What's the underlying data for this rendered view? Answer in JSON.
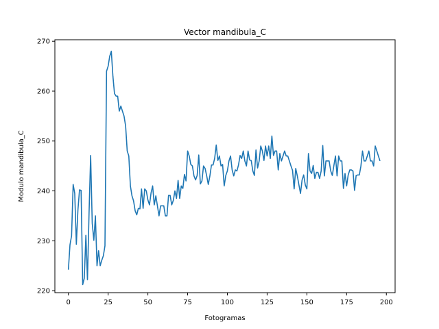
{
  "chart_data": {
    "type": "line",
    "title": "Vector mandibula_C",
    "xlabel": "Fotogramas",
    "ylabel": "Modulo mandibula_C",
    "xlim": [
      -8.5,
      205.5
    ],
    "ylim": [
      219.6,
      270.3
    ],
    "xticks": [
      0,
      25,
      50,
      75,
      100,
      125,
      150,
      175,
      200
    ],
    "yticks": [
      220,
      230,
      240,
      250,
      260,
      270
    ],
    "grid": false,
    "line_color": "#1f77b4",
    "series": [
      {
        "x": [
          0,
          1,
          2,
          3,
          4,
          5,
          6,
          7,
          8,
          9,
          10,
          11,
          12,
          13,
          14,
          15,
          16,
          17,
          18,
          19,
          20,
          21,
          22,
          23,
          24,
          25,
          26,
          27,
          28,
          29,
          30,
          31,
          32,
          33,
          34,
          35,
          36,
          37,
          38,
          39,
          40,
          41,
          42,
          43,
          44,
          45,
          46,
          47,
          48,
          49,
          50,
          51,
          52,
          53,
          54,
          55,
          56,
          57,
          58,
          59,
          60,
          61,
          62,
          63,
          64,
          65,
          66,
          67,
          68,
          69,
          70,
          71,
          72,
          73,
          74,
          75,
          76,
          77,
          78,
          79,
          80,
          81,
          82,
          83,
          84,
          85,
          86,
          87,
          88,
          89,
          90,
          91,
          92,
          93,
          94,
          95,
          96,
          97,
          98,
          99,
          100,
          101,
          102,
          103,
          104,
          105,
          106,
          107,
          108,
          109,
          110,
          111,
          112,
          113,
          114,
          115,
          116,
          117,
          118,
          119,
          120,
          121,
          122,
          123,
          124,
          125,
          126,
          127,
          128,
          129,
          130,
          131,
          132,
          133,
          134,
          135,
          136,
          137,
          138,
          139,
          140,
          141,
          142,
          143,
          144,
          145,
          146,
          147,
          148,
          149,
          150,
          151,
          152,
          153,
          154,
          155,
          156,
          157,
          158,
          159,
          160,
          161,
          162,
          163,
          164,
          165,
          166,
          167,
          168,
          169,
          170,
          171,
          172,
          173,
          174,
          175,
          176,
          177,
          178,
          179,
          180,
          181,
          182,
          183,
          184,
          185,
          186,
          187,
          188,
          189,
          190,
          191,
          192,
          193,
          194,
          195,
          196
        ],
        "values": [
          224.2,
          229.2,
          231.0,
          241.3,
          239.5,
          229.3,
          236.2,
          240.2,
          240.1,
          221.2,
          222.5,
          231.1,
          222.2,
          235.6,
          247.1,
          233.5,
          230.1,
          235.0,
          225.0,
          228.0,
          225.0,
          226.1,
          227.0,
          229.0,
          264.0,
          265.0,
          267.0,
          268.0,
          263.0,
          259.5,
          259.0,
          259.0,
          256.0,
          257.0,
          256.0,
          255.0,
          253.0,
          248.0,
          247.0,
          241.0,
          239.0,
          238.0,
          236.0,
          235.2,
          236.5,
          236.4,
          240.4,
          236.5,
          240.4,
          240.0,
          238.2,
          237.2,
          239.6,
          241.0,
          237.2,
          239.0,
          237.0,
          235.0,
          237.0,
          237.0,
          237.0,
          235.0,
          235.0,
          239.1,
          239.1,
          237.2,
          238.1,
          240.0,
          238.5,
          242.1,
          238.5,
          241.0,
          240.5,
          243.3,
          242.0,
          248.0,
          247.0,
          245.3,
          245.0,
          243.0,
          242.2,
          243.1,
          247.2,
          241.4,
          242.0,
          245.0,
          244.5,
          243.0,
          241.3,
          243.0,
          245.2,
          245.2,
          246.5,
          249.2,
          246.1,
          247.0,
          245.0,
          245.3,
          241.0,
          243.1,
          244.0,
          246.0,
          247.0,
          244.2,
          243.0,
          244.2,
          244.0,
          245.2,
          247.1,
          246.5,
          248.0,
          246.0,
          245.0,
          248.0,
          246.2,
          246.1,
          244.0,
          243.1,
          248.2,
          244.6,
          246.0,
          249.0,
          248.0,
          246.1,
          249.0,
          247.0,
          249.0,
          246.5,
          251.0,
          247.1,
          248.0,
          248.0,
          244.2,
          247.5,
          246.0,
          247.0,
          248.0,
          247.0,
          247.0,
          246.0,
          245.0,
          244.1,
          240.4,
          244.5,
          243.0,
          241.2,
          239.5,
          242.2,
          243.2,
          241.2,
          240.4,
          247.5,
          244.0,
          243.5,
          245.1,
          242.5,
          243.7,
          243.7,
          242.5,
          244.0,
          249.1,
          243.0,
          246.0,
          246.0,
          246.0,
          244.0,
          243.1,
          245.1,
          247.0,
          243.0,
          247.0,
          246.0,
          246.0,
          240.5,
          243.5,
          241.0,
          243.2,
          244.2,
          244.2,
          244.0,
          240.1,
          243.1,
          243.2,
          243.2,
          245.0,
          248.0,
          246.0,
          246.0,
          247.0,
          248.0,
          246.0,
          246.0,
          245.0,
          249.0,
          248.0,
          247.0,
          246.0
        ]
      }
    ]
  }
}
